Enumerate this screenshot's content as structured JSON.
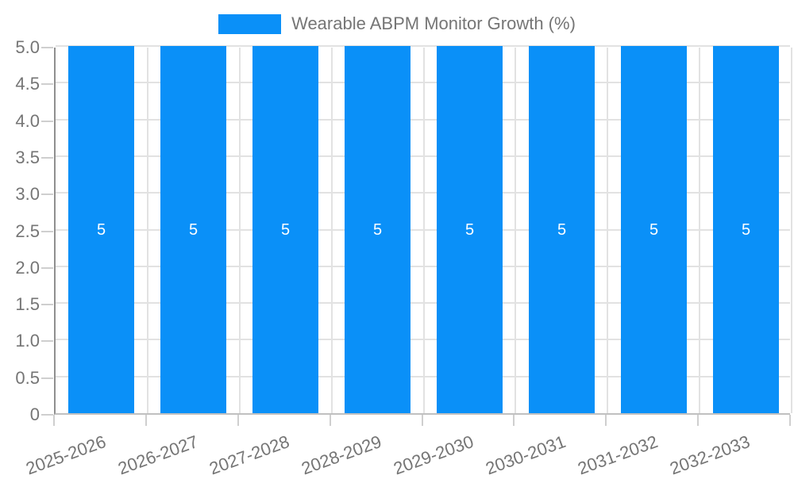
{
  "chart_data": {
    "type": "bar",
    "title": "Wearable ABPM Monitor Growth (%)",
    "categories": [
      "2025-2026",
      "2026-2027",
      "2027-2028",
      "2028-2029",
      "2029-2030",
      "2030-2031",
      "2031-2032",
      "2032-2033"
    ],
    "series": [
      {
        "name": "Wearable ABPM Monitor Growth (%)",
        "values": [
          5,
          5,
          5,
          5,
          5,
          5,
          5,
          5
        ]
      }
    ],
    "bar_value_labels": [
      "5",
      "5",
      "5",
      "5",
      "5",
      "5",
      "5",
      "5"
    ],
    "xlabel": "",
    "ylabel": "",
    "ylim": [
      0,
      5
    ],
    "yticks": [
      0,
      0.5,
      1.0,
      1.5,
      2.0,
      2.5,
      3.0,
      3.5,
      4.0,
      4.5,
      5.0
    ],
    "ytick_labels": [
      "0",
      "0.5",
      "1.0",
      "1.5",
      "2.0",
      "2.5",
      "3.0",
      "3.5",
      "4.0",
      "4.5",
      "5.0"
    ],
    "grid": true,
    "legend_position": "top-center",
    "colors": {
      "bar": "#0a90f8",
      "bar_label": "#ffffff",
      "grid_line": "#e2e2e2",
      "tick_mark": "#cfcfcf",
      "axis_text": "#757575",
      "background": "#ffffff"
    }
  }
}
